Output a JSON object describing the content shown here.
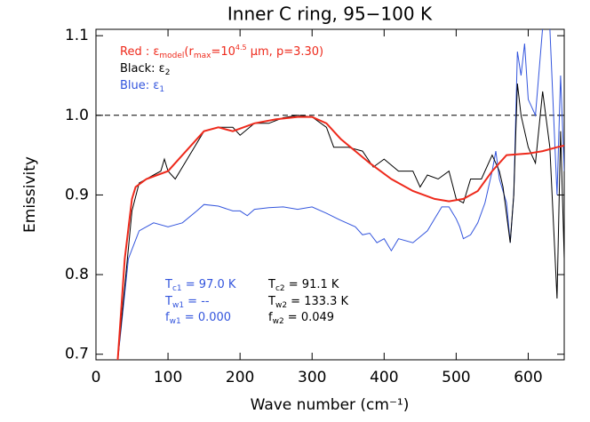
{
  "chart_data": {
    "type": "line",
    "title": "Inner C ring, 95−100 K",
    "x_label": "Wave number (cm⁻¹)",
    "y_label": "Emissivity",
    "xlim": [
      0,
      650
    ],
    "ylim": [
      0.693,
      1.108
    ],
    "xticks": [
      0,
      100,
      200,
      300,
      400,
      500,
      600
    ],
    "yticks": [
      0.7,
      0.8,
      0.9,
      {
        "value": 1,
        "label": "1.0"
      },
      1.1
    ],
    "reference_line": 1,
    "series": [
      {
        "name": "model",
        "color": "#ee2a1c",
        "x": [
          30,
          40,
          50,
          55,
          70,
          100,
          120,
          150,
          170,
          190,
          220,
          250,
          280,
          300,
          320,
          340,
          360,
          380,
          410,
          440,
          470,
          490,
          510,
          530,
          550,
          570,
          600,
          620,
          640,
          650
        ],
        "values": [
          0.69,
          0.82,
          0.895,
          0.91,
          0.92,
          0.93,
          0.95,
          0.98,
          0.985,
          0.98,
          0.99,
          0.995,
          0.998,
          0.998,
          0.99,
          0.97,
          0.955,
          0.94,
          0.92,
          0.905,
          0.895,
          0.892,
          0.895,
          0.905,
          0.93,
          0.95,
          0.952,
          0.955,
          0.96,
          0.962
        ]
      },
      {
        "name": "e2",
        "color": "#000000",
        "x": [
          30,
          50,
          60,
          80,
          90,
          95,
          100,
          110,
          130,
          150,
          170,
          190,
          200,
          220,
          240,
          260,
          280,
          300,
          320,
          330,
          350,
          370,
          385,
          400,
          420,
          440,
          450,
          460,
          475,
          490,
          500,
          510,
          520,
          535,
          550,
          560,
          565,
          575,
          580,
          585,
          590,
          600,
          610,
          620,
          630,
          640,
          645,
          650
        ],
        "values": [
          0.69,
          0.88,
          0.915,
          0.925,
          0.93,
          0.945,
          0.93,
          0.92,
          0.95,
          0.98,
          0.985,
          0.985,
          0.975,
          0.99,
          0.99,
          0.997,
          1.0,
          0.998,
          0.985,
          0.96,
          0.96,
          0.955,
          0.935,
          0.945,
          0.93,
          0.93,
          0.91,
          0.925,
          0.92,
          0.93,
          0.895,
          0.89,
          0.92,
          0.92,
          0.95,
          0.93,
          0.91,
          0.84,
          0.9,
          1.04,
          1.0,
          0.96,
          0.94,
          1.03,
          0.96,
          0.77,
          0.98,
          0.82
        ]
      },
      {
        "name": "e1",
        "color": "#3355dd",
        "x": [
          30,
          45,
          60,
          80,
          100,
          120,
          140,
          150,
          170,
          190,
          200,
          210,
          220,
          240,
          260,
          280,
          300,
          320,
          340,
          360,
          370,
          380,
          390,
          400,
          410,
          420,
          440,
          460,
          470,
          480,
          490,
          500,
          505,
          510,
          520,
          530,
          540,
          550,
          555,
          560,
          570,
          575,
          580,
          585,
          590,
          595,
          600,
          610,
          620,
          630,
          640,
          645,
          650
        ],
        "values": [
          0.69,
          0.82,
          0.855,
          0.865,
          0.86,
          0.865,
          0.88,
          0.888,
          0.886,
          0.88,
          0.88,
          0.874,
          0.882,
          0.884,
          0.885,
          0.882,
          0.885,
          0.877,
          0.868,
          0.86,
          0.85,
          0.852,
          0.84,
          0.845,
          0.83,
          0.845,
          0.84,
          0.855,
          0.87,
          0.885,
          0.885,
          0.87,
          0.86,
          0.845,
          0.85,
          0.865,
          0.89,
          0.93,
          0.955,
          0.92,
          0.89,
          0.84,
          0.9,
          1.08,
          1.05,
          1.09,
          1.02,
          1.0,
          1.11,
          1.11,
          0.9,
          1.05,
          0.93
        ]
      }
    ],
    "annotations": [
      {
        "color": "#ee2a1c",
        "parts": [
          {
            "text": "Red : ε"
          },
          {
            "text": "model",
            "style": "sub"
          },
          {
            "text": "(r"
          },
          {
            "text": "max",
            "style": "sub"
          },
          {
            "text": "=10"
          },
          {
            "text": "4.5",
            "style": "sup"
          },
          {
            "text": " μm, p=3.30)"
          }
        ]
      },
      {
        "color": "#000000",
        "parts": [
          {
            "text": "Black: ε"
          },
          {
            "text": "2",
            "style": "sub"
          }
        ]
      },
      {
        "color": "#3355dd",
        "parts": [
          {
            "text": "Blue: ε"
          },
          {
            "text": "1",
            "style": "sub"
          }
        ]
      },
      {
        "color": "#3355dd",
        "parts": [
          {
            "text": "T"
          },
          {
            "text": "c1",
            "style": "sub"
          },
          {
            "text": " =  97.0 K"
          }
        ]
      },
      {
        "color": "#3355dd",
        "parts": [
          {
            "text": "T"
          },
          {
            "text": "w1",
            "style": "sub"
          },
          {
            "text": " = --"
          }
        ]
      },
      {
        "color": "#3355dd",
        "parts": [
          {
            "text": "f"
          },
          {
            "text": "w1",
            "style": "sub"
          },
          {
            "text": " = 0.000"
          }
        ]
      },
      {
        "color": "#000000",
        "parts": [
          {
            "text": "T"
          },
          {
            "text": "c2",
            "style": "sub"
          },
          {
            "text": " =  91.1 K"
          }
        ]
      },
      {
        "color": "#000000",
        "parts": [
          {
            "text": "T"
          },
          {
            "text": "w2",
            "style": "sub"
          },
          {
            "text": " = 133.3 K"
          }
        ]
      },
      {
        "color": "#000000",
        "parts": [
          {
            "text": "f"
          },
          {
            "text": "w2",
            "style": "sub"
          },
          {
            "text": " = 0.049"
          }
        ]
      }
    ]
  }
}
